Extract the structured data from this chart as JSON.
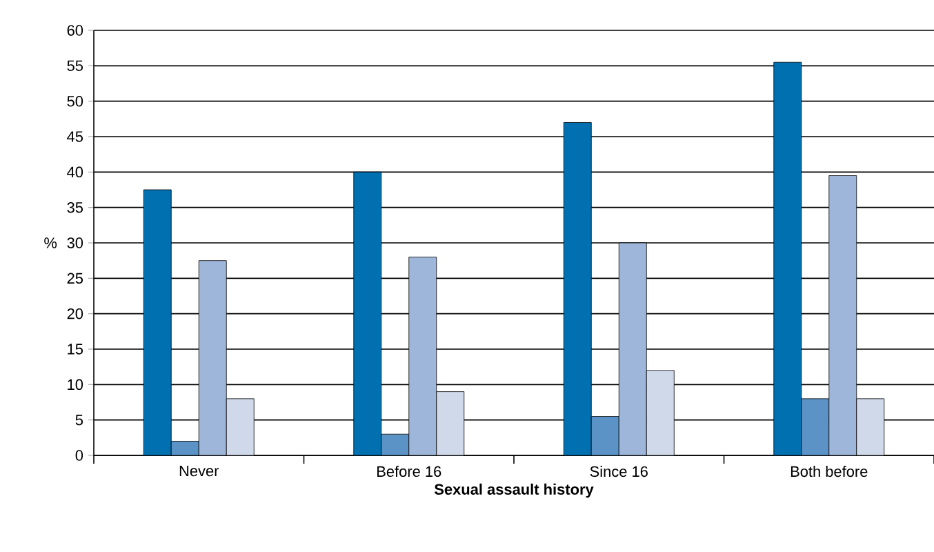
{
  "chart_data": {
    "type": "bar",
    "xlabel": "Sexual assault history",
    "ylabel": "%",
    "categories": [
      "Never",
      "Before 16",
      "Since 16",
      "Both before"
    ],
    "series": [
      {
        "color": "#0070b0",
        "values": [
          37.5,
          40,
          47,
          55.5
        ]
      },
      {
        "color": "#5b93c7",
        "values": [
          2,
          3,
          5.5,
          8
        ]
      },
      {
        "color": "#9db6d9",
        "values": [
          27.5,
          28,
          30,
          39.5
        ]
      },
      {
        "color": "#cfd9ea",
        "values": [
          8,
          9,
          12,
          8
        ]
      }
    ],
    "ylim": [
      0,
      60
    ],
    "yticks": [
      0,
      5,
      10,
      15,
      20,
      25,
      30,
      35,
      40,
      45,
      50,
      55,
      60
    ],
    "grid": "y"
  }
}
